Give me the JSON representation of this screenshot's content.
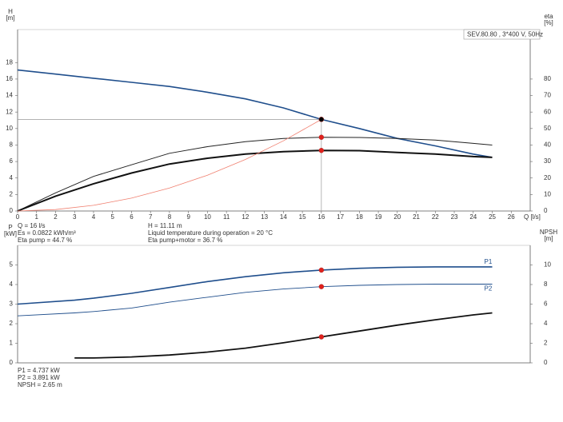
{
  "chart_data": [
    {
      "type": "line",
      "legend_title": "SEV.80.80 , 3*400 V, 50Hz",
      "ylabel_lines": [
        "H",
        "[m]"
      ],
      "y2label_lines": [
        "eta",
        "[%]"
      ],
      "xlabel": "Q [l/s]",
      "xlim": [
        0,
        27
      ],
      "xticks": [
        0,
        1,
        2,
        3,
        4,
        5,
        6,
        7,
        8,
        9,
        10,
        11,
        12,
        13,
        14,
        15,
        16,
        17,
        18,
        19,
        20,
        21,
        22,
        23,
        24,
        25,
        26
      ],
      "ylim": [
        0,
        22
      ],
      "yticks": [
        0,
        2,
        4,
        6,
        8,
        10,
        12,
        14,
        16,
        18
      ],
      "y2lim": [
        0,
        110
      ],
      "y2ticks": [
        0,
        10,
        20,
        30,
        40,
        50,
        60,
        70,
        80
      ],
      "x": [
        0,
        2,
        4,
        6,
        8,
        10,
        12,
        14,
        16,
        18,
        20,
        22,
        24,
        25
      ],
      "operating_point": {
        "x": 16
      },
      "series": [
        {
          "color": "#1f4e8c",
          "width": 1.6,
          "marker": "#f5c518",
          "crosshair": true,
          "values": [
            17.1,
            16.6,
            16.1,
            15.6,
            15.1,
            14.4,
            13.6,
            12.5,
            11.11,
            10.0,
            8.8,
            7.9,
            6.9,
            6.5
          ]
        },
        {
          "color": "#222222",
          "width": 1,
          "axis": "y2",
          "marker": "#e0201b",
          "values": [
            0,
            11,
            21,
            28,
            35,
            39,
            42,
            44,
            44.7,
            44.6,
            44,
            43,
            41,
            40
          ]
        },
        {
          "color": "#111111",
          "width": 2,
          "axis": "y2",
          "marker": "#e0201b",
          "values": [
            0,
            9,
            16.5,
            23,
            28.5,
            32,
            34.5,
            36,
            36.7,
            36.6,
            35.5,
            34.5,
            33,
            32.5
          ]
        },
        {
          "color": "#f08070",
          "width": 0.8,
          "values": [
            0,
            0.17,
            0.69,
            1.56,
            2.78,
            4.34,
            6.25,
            8.51,
            11.11,
            null,
            null,
            null,
            null,
            null
          ]
        }
      ],
      "info": [
        [
          "Q = 16 l/s",
          "Es = 0.0822 kWh/m³",
          "Eta pump = 44.7 %"
        ],
        [
          "H = 11.11 m",
          "Liquid temperature during operation = 20 °C",
          "Eta pump+motor = 36.7 %"
        ]
      ]
    },
    {
      "type": "line",
      "ylabel_lines": [
        "P",
        "[kW]"
      ],
      "y2label_lines": [
        "NPSH",
        "[m]"
      ],
      "xlim": [
        0,
        27
      ],
      "ylim": [
        0,
        6
      ],
      "yticks": [
        0,
        1,
        2,
        3,
        4,
        5
      ],
      "y2lim": [
        0,
        12
      ],
      "y2ticks": [
        0,
        2,
        4,
        6,
        8,
        10
      ],
      "x": [
        0,
        3,
        4,
        6,
        8,
        10,
        12,
        14,
        16,
        18,
        20,
        22,
        24,
        25
      ],
      "operating_point": {
        "x": 16
      },
      "series": [
        {
          "name": "P1",
          "color": "#1f4e8c",
          "width": 1.6,
          "marker": "#e0201b",
          "values": [
            3.0,
            3.2,
            3.3,
            3.55,
            3.85,
            4.15,
            4.4,
            4.6,
            4.737,
            4.83,
            4.88,
            4.9,
            4.9,
            4.9
          ]
        },
        {
          "name": "P2",
          "color": "#1f4e8c",
          "width": 0.9,
          "marker": "#e0201b",
          "values": [
            2.4,
            2.55,
            2.62,
            2.8,
            3.1,
            3.35,
            3.6,
            3.77,
            3.891,
            3.96,
            4.0,
            4.02,
            4.02,
            4.02
          ]
        },
        {
          "color": "#111111",
          "width": 1.8,
          "axis": "y2",
          "marker": "#e0201b",
          "values": [
            null,
            0.5,
            0.5,
            0.6,
            0.8,
            1.1,
            1.5,
            2.05,
            2.65,
            3.25,
            3.85,
            4.4,
            4.9,
            5.1
          ]
        }
      ],
      "info": [
        [
          "P1 = 4.737 kW",
          "P2 = 3.891 kW",
          "NPSH = 2.65 m"
        ]
      ]
    }
  ]
}
